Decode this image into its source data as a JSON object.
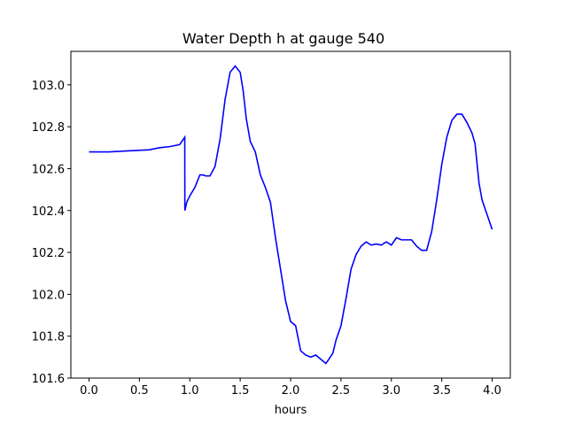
{
  "chart_data": {
    "type": "line",
    "title": "Water Depth h at gauge 540",
    "xlabel": "hours",
    "ylabel": "",
    "xlim": [
      -0.18,
      4.18
    ],
    "ylim": [
      101.6,
      103.16
    ],
    "grid": false,
    "legend": "none",
    "x_ticks": [
      0.0,
      0.5,
      1.0,
      1.5,
      2.0,
      2.5,
      3.0,
      3.5,
      4.0
    ],
    "x_tick_labels": [
      "0.0",
      "0.5",
      "1.0",
      "1.5",
      "2.0",
      "2.5",
      "3.0",
      "3.5",
      "4.0"
    ],
    "y_ticks": [
      101.6,
      101.8,
      102.0,
      102.2,
      102.4,
      102.6,
      102.8,
      103.0
    ],
    "y_tick_labels": [
      "101.6",
      "101.8",
      "102.0",
      "102.2",
      "102.4",
      "102.6",
      "102.8",
      "103.0"
    ],
    "series": [
      {
        "color": "#0000ff",
        "x": [
          0.0,
          0.2,
          0.4,
          0.6,
          0.7,
          0.8,
          0.9,
          0.95,
          0.951,
          0.97,
          1.0,
          1.05,
          1.1,
          1.13,
          1.16,
          1.2,
          1.25,
          1.3,
          1.35,
          1.4,
          1.45,
          1.5,
          1.53,
          1.56,
          1.6,
          1.65,
          1.7,
          1.75,
          1.8,
          1.85,
          1.9,
          1.95,
          2.0,
          2.05,
          2.1,
          2.15,
          2.2,
          2.25,
          2.3,
          2.35,
          2.38,
          2.42,
          2.45,
          2.5,
          2.55,
          2.6,
          2.65,
          2.7,
          2.75,
          2.8,
          2.85,
          2.9,
          2.95,
          3.0,
          3.05,
          3.1,
          3.15,
          3.2,
          3.25,
          3.3,
          3.35,
          3.4,
          3.45,
          3.5,
          3.55,
          3.6,
          3.65,
          3.7,
          3.75,
          3.8,
          3.83,
          3.87,
          3.9,
          3.95,
          4.0
        ],
        "y": [
          102.68,
          102.68,
          102.685,
          102.69,
          102.7,
          102.705,
          102.715,
          102.75,
          102.4,
          102.44,
          102.47,
          102.51,
          102.57,
          102.57,
          102.565,
          102.565,
          102.61,
          102.74,
          102.93,
          103.06,
          103.09,
          103.06,
          102.97,
          102.84,
          102.73,
          102.68,
          102.57,
          102.51,
          102.44,
          102.27,
          102.12,
          101.97,
          101.87,
          101.85,
          101.73,
          101.71,
          101.7,
          101.71,
          101.69,
          101.67,
          101.69,
          101.72,
          101.78,
          101.85,
          101.98,
          102.12,
          102.19,
          102.23,
          102.25,
          102.235,
          102.24,
          102.235,
          102.25,
          102.235,
          102.27,
          102.26,
          102.26,
          102.26,
          102.23,
          102.21,
          102.21,
          102.3,
          102.45,
          102.62,
          102.75,
          102.83,
          102.86,
          102.86,
          102.82,
          102.77,
          102.72,
          102.53,
          102.45,
          102.38,
          102.31
        ]
      }
    ]
  }
}
